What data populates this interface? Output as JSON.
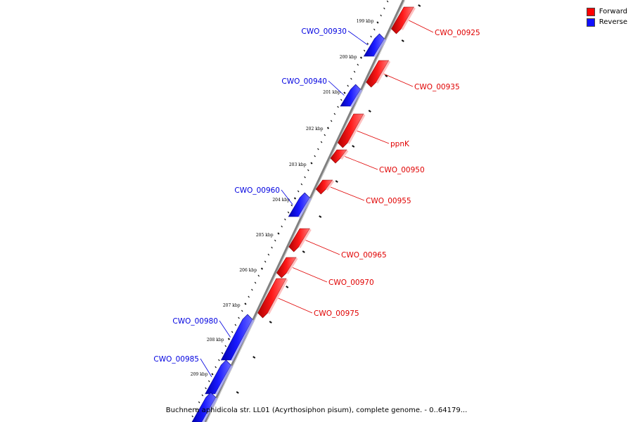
{
  "legend": [
    {
      "label": "Forward",
      "color": "#ff0000"
    },
    {
      "label": "Reverse",
      "color": "#1010ff"
    }
  ],
  "caption": "Buchnera aphidicola str. LL01 (Acyrthosiphon pisum), complete genome. - 0..64179...",
  "ticks": [
    "199 kbp",
    "200 kbp",
    "201 kbp",
    "202 kbp",
    "203 kbp",
    "204 kbp",
    "205 kbp",
    "206 kbp",
    "207 kbp",
    "208 kbp",
    "209 kbp"
  ],
  "genes": [
    {
      "name": "CWO_00925",
      "strand": "forward"
    },
    {
      "name": "CWO_00930",
      "strand": "reverse"
    },
    {
      "name": "CWO_00935",
      "strand": "forward"
    },
    {
      "name": "CWO_00940",
      "strand": "reverse"
    },
    {
      "name": "ppnK",
      "strand": "forward"
    },
    {
      "name": "CWO_00950",
      "strand": "forward"
    },
    {
      "name": "CWO_00955",
      "strand": "forward"
    },
    {
      "name": "CWO_00960",
      "strand": "reverse"
    },
    {
      "name": "CWO_00965",
      "strand": "forward"
    },
    {
      "name": "CWO_00970",
      "strand": "forward"
    },
    {
      "name": "CWO_00975",
      "strand": "forward"
    },
    {
      "name": "CWO_00980",
      "strand": "reverse"
    },
    {
      "name": "CWO_00985",
      "strand": "reverse"
    },
    {
      "name": "",
      "strand": "reverse"
    }
  ]
}
